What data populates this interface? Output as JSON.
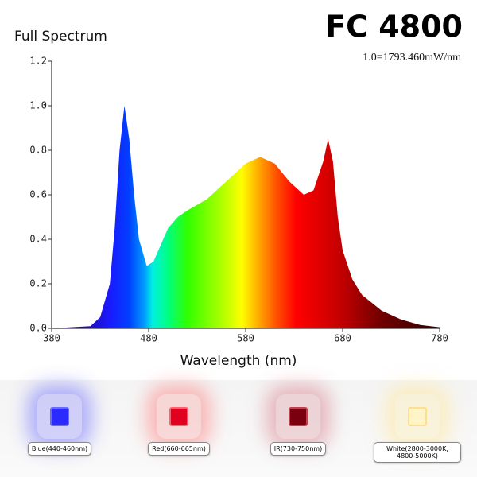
{
  "chart_data": {
    "type": "area",
    "title": "FC 4800",
    "subtitle": "Full Spectrum",
    "annotation": "1.0=1793.460mW/nm",
    "x_label": "Wavelength (nm)",
    "x": [
      380,
      400,
      420,
      430,
      440,
      445,
      450,
      455,
      460,
      465,
      470,
      478,
      485,
      490,
      500,
      510,
      520,
      540,
      560,
      580,
      595,
      610,
      625,
      640,
      650,
      660,
      665,
      670,
      675,
      680,
      690,
      700,
      720,
      740,
      760,
      780
    ],
    "values": [
      0,
      0.005,
      0.01,
      0.05,
      0.2,
      0.45,
      0.8,
      1.0,
      0.85,
      0.6,
      0.4,
      0.28,
      0.3,
      0.35,
      0.45,
      0.5,
      0.53,
      0.58,
      0.66,
      0.74,
      0.77,
      0.74,
      0.66,
      0.6,
      0.62,
      0.75,
      0.85,
      0.75,
      0.5,
      0.35,
      0.22,
      0.15,
      0.08,
      0.04,
      0.015,
      0.005
    ],
    "xlim": [
      380,
      780
    ],
    "xticks": [
      380,
      480,
      580,
      680,
      780
    ],
    "ylim": [
      0,
      1.2
    ],
    "yticks": [
      {
        "value": 0,
        "label": "0.0"
      },
      0.2,
      0.4,
      0.6,
      0.8,
      {
        "value": 1,
        "label": "1.0"
      },
      1.2
    ]
  },
  "led_legend": [
    "Blue(440-460nm)",
    "Red(660-665nm)",
    "IR(730-750nm)",
    "White(2800-3000K, 4800-5000K)"
  ]
}
